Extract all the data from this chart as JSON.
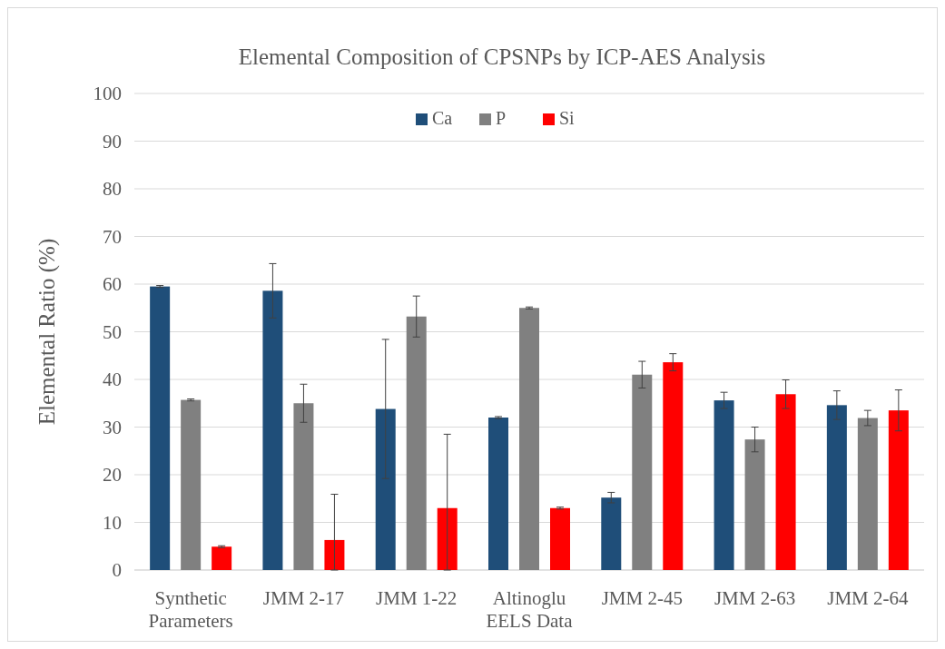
{
  "chart_data": {
    "type": "bar",
    "title": "Elemental Composition of CPSNPs by ICP-AES Analysis",
    "ylabel": "Elemental Ratio (%)",
    "categories": [
      "Synthetic\nParameters",
      "JMM 2-17",
      "JMM 1-22",
      "Altinoglu\nEELS Data",
      "JMM 2-45",
      "JMM 2-63",
      "JMM 2-64"
    ],
    "series": [
      {
        "name": "Ca",
        "color": "#1f4e79",
        "values": [
          59.5,
          58.6,
          33.8,
          32,
          15.2,
          35.6,
          34.6
        ],
        "errors": [
          0.2,
          5.7,
          14.6,
          0.2,
          1.1,
          1.7,
          3
        ]
      },
      {
        "name": "P",
        "color": "#808080",
        "values": [
          35.7,
          35,
          53.2,
          55,
          41,
          27.4,
          31.9
        ],
        "errors": [
          0.2,
          4,
          4.3,
          0.2,
          2.8,
          2.6,
          1.6
        ]
      },
      {
        "name": "Si",
        "color": "#ff0000",
        "values": [
          4.9,
          6.3,
          13,
          13,
          43.6,
          36.9,
          33.5
        ],
        "errors": [
          0.2,
          [
            0,
            15.9
          ],
          [
            0,
            28.5
          ],
          0.2,
          1.8,
          3,
          4.3
        ]
      }
    ],
    "ylim": [
      0,
      100
    ],
    "yticks": [
      0,
      10,
      20,
      30,
      40,
      50,
      60,
      70,
      80,
      90,
      100
    ],
    "grid": "y",
    "legend": "top"
  }
}
